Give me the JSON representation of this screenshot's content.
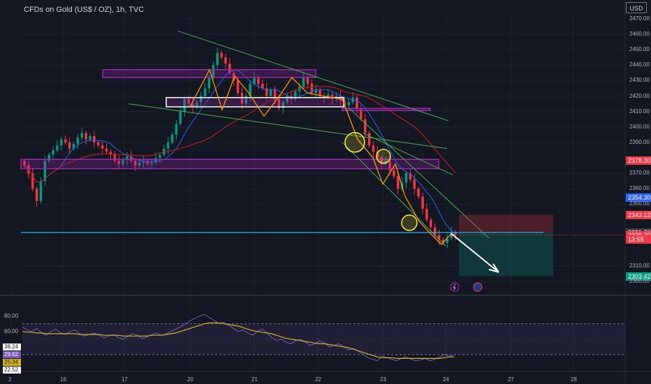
{
  "header": {
    "title": "CFDs on Gold (US$ / OZ), 1h, TVC",
    "currency_button": "USD"
  },
  "colors": {
    "background": "#131722",
    "up": "#089981",
    "down": "#f23645",
    "channel": "#4caf50",
    "zone": "#9c27b0",
    "level": "#29b6f6",
    "ma_fast": "#2962ff",
    "ma_slow": "#b71c1c",
    "zigzag": "#ff9800",
    "rsi": "#7e57c2",
    "rsi_ma": "#d4b21a"
  },
  "chart_data": [
    {
      "type": "candlestick",
      "title": "CFDs on Gold (US$ / OZ), 1h, TVC",
      "xlabel": "",
      "ylabel": "",
      "ylim": [
        2296,
        2474
      ],
      "y_ticks": [
        "2470.00",
        "2460.00",
        "2450.00",
        "2440.00",
        "2430.00",
        "2420.00",
        "2410.00",
        "2400.00",
        "2390.00",
        "2370.00",
        "2360.00",
        "2350.00",
        "2310.00",
        "2300.00"
      ],
      "x_ticks": [
        "2",
        "16",
        "17",
        "20",
        "21",
        "22",
        "23",
        "24",
        "27",
        "28"
      ],
      "grid": true,
      "price_labels": [
        {
          "text": "2378.30",
          "value": 2378.3,
          "color": "#f23645"
        },
        {
          "text": "2354.30",
          "value": 2354.3,
          "color": "#2962ff"
        },
        {
          "text": "2343.12",
          "value": 2343.12,
          "color": "#f23645"
        },
        {
          "text": "2331.70",
          "value": 2331.7,
          "color": "#363a45"
        },
        {
          "text": "2329.70",
          "value": 2329.7,
          "color": "#f23645"
        },
        {
          "text": "13:58",
          "value": 2327.3,
          "color": "#f23645"
        },
        {
          "text": "2303.42",
          "value": 2303.42,
          "color": "#089981"
        }
      ],
      "closes": [
        2375,
        2370,
        2360,
        2352,
        2365,
        2378,
        2382,
        2385,
        2388,
        2392,
        2390,
        2386,
        2389,
        2393,
        2396,
        2392,
        2394,
        2390,
        2388,
        2386,
        2384,
        2382,
        2378,
        2376,
        2379,
        2381,
        2378,
        2375,
        2377,
        2378,
        2376,
        2377,
        2380,
        2382,
        2386,
        2390,
        2395,
        2402,
        2410,
        2418,
        2415,
        2413,
        2416,
        2420,
        2425,
        2432,
        2440,
        2448,
        2445,
        2441,
        2435,
        2430,
        2422,
        2415,
        2420,
        2428,
        2432,
        2428,
        2425,
        2420,
        2424,
        2418,
        2412,
        2416,
        2420,
        2418,
        2423,
        2426,
        2432,
        2428,
        2422,
        2424,
        2420,
        2419,
        2421,
        2418,
        2420,
        2417,
        2414,
        2416,
        2419,
        2412,
        2405,
        2396,
        2388,
        2384,
        2380,
        2376,
        2378,
        2372,
        2368,
        2360,
        2364,
        2370,
        2366,
        2360,
        2355,
        2347,
        2340,
        2335,
        2330,
        2327,
        2325,
        2328,
        2332,
        2330
      ],
      "reference_level": 2331.7,
      "position_tool": {
        "entry": 2331.7,
        "stop": 2343.12,
        "target": 2303.42
      }
    },
    {
      "type": "line",
      "title": "",
      "ylim": [
        10,
        95
      ],
      "y_ticks": [
        "80.00",
        "60.00"
      ],
      "bands": [
        30,
        70
      ],
      "value_labels": [
        {
          "text": "38.24",
          "color": "#ffffff",
          "fg": "#131722"
        },
        {
          "text": "29.62",
          "color": "#7e57c2",
          "fg": "#ffffff"
        },
        {
          "text": "25.34",
          "color": "#d4b21a",
          "fg": "#131722"
        },
        {
          "text": "22.52",
          "color": "#ffffff",
          "fg": "#131722"
        }
      ],
      "series": [
        {
          "values": [
            66,
            62,
            60,
            64,
            58,
            55,
            60,
            63,
            58,
            56,
            60,
            62,
            57,
            54,
            56,
            58,
            55,
            52,
            54,
            56,
            52,
            50,
            54,
            57,
            55,
            51,
            53,
            56,
            58,
            55,
            57,
            60,
            63,
            66,
            70,
            74,
            77,
            80,
            82,
            78,
            74,
            70,
            72,
            68,
            64,
            60,
            62,
            58,
            55,
            60,
            63,
            58,
            52,
            48,
            50,
            46,
            44,
            48,
            50,
            46,
            42,
            44,
            48,
            45,
            40,
            42,
            44,
            40,
            36,
            38,
            35,
            30,
            26,
            24,
            22,
            28,
            26,
            24,
            22,
            25,
            27,
            24,
            22,
            23,
            25,
            22,
            24,
            27,
            30,
            28,
            29
          ]
        },
        {
          "values": [
            60,
            59,
            59,
            58,
            58,
            57,
            57,
            57,
            57,
            57,
            57,
            57,
            56,
            56,
            56,
            56,
            56,
            55,
            55,
            55,
            55,
            54,
            54,
            54,
            54,
            54,
            54,
            55,
            55,
            55,
            56,
            57,
            58,
            60,
            62,
            64,
            66,
            68,
            70,
            71,
            71,
            71,
            70,
            69,
            68,
            67,
            65,
            63,
            61,
            60,
            59,
            58,
            57,
            55,
            53,
            51,
            50,
            49,
            48,
            47,
            46,
            45,
            44,
            44,
            43,
            42,
            41,
            40,
            39,
            37,
            35,
            33,
            31,
            29,
            27,
            26,
            26,
            26,
            25,
            25,
            25,
            25,
            25,
            25,
            25,
            25,
            25,
            25,
            26,
            27,
            27
          ]
        }
      ]
    }
  ]
}
